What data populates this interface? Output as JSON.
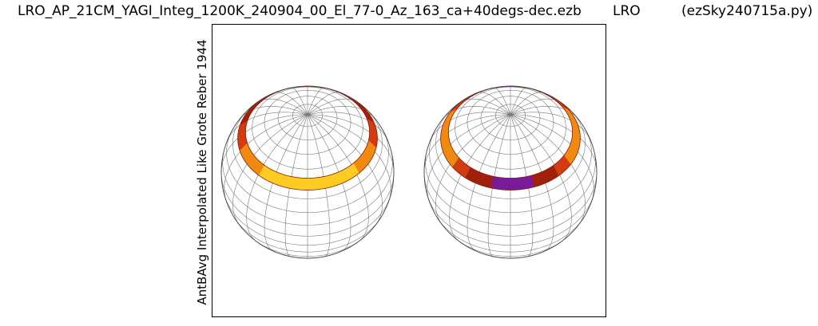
{
  "header": {
    "filename": "LRO_AP_21CM_YAGI_Integ_1200K_240904_00_El_77-0_Az_163_ca+40degs-dec.ezb",
    "site": "LRO",
    "program": "(ezSky240715a.py)"
  },
  "chart_data": {
    "type": "heatmap",
    "projection": "globe-orthographic",
    "ylabel": "AntBAvg Interpolated Like Grote Reber 1944",
    "xlabel": "",
    "grid": true,
    "panels": [
      {
        "name": "",
        "view_center_ra_hours": 0,
        "observed_dec_deg": 40,
        "dec_band_half_width_deg": 4
      },
      {
        "name": "",
        "view_center_ra_hours": 12,
        "observed_dec_deg": 40,
        "dec_band_half_width_deg": 4
      }
    ],
    "colors": {
      "band_dark": "#a0200c",
      "band_mid": "#d23c10",
      "band_bright": "#f08a10",
      "band_hot": "#ffcc22",
      "band_low": "#7a1a9a",
      "grid": "#777777",
      "limb": "#444444"
    }
  }
}
